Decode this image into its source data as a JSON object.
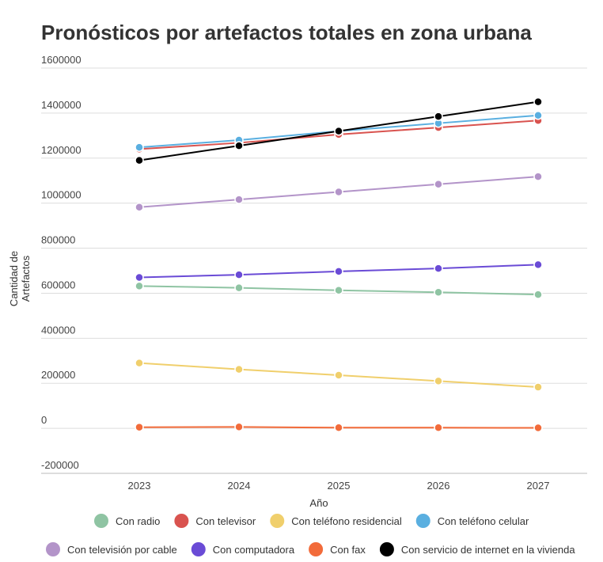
{
  "chart_data": {
    "type": "line",
    "title": "Pronósticos por artefactos totales en zona urbana",
    "xlabel": "Año",
    "ylabel": "Cantidad de Artefactos",
    "ylabel_lines": [
      "Cantidad de",
      "Artefactos"
    ],
    "x": [
      "2023",
      "2024",
      "2025",
      "2026",
      "2027"
    ],
    "ylim": [
      -200000,
      1600000
    ],
    "yticks": [
      -200000,
      0,
      200000,
      400000,
      600000,
      800000,
      1000000,
      1200000,
      1400000,
      1600000
    ],
    "ytick_labels": [
      "-200000",
      "0",
      "200000",
      "400000",
      "600000",
      "800000",
      "1000000",
      "1200000",
      "1400000",
      "1600000"
    ],
    "grid": true,
    "legend_position": "bottom",
    "series": [
      {
        "name": "Con radio",
        "color": "#8fc4a3",
        "values": [
          632000,
          624000,
          613000,
          604000,
          594000
        ]
      },
      {
        "name": "Con televisor",
        "color": "#d9534f",
        "values": [
          1240000,
          1268000,
          1305000,
          1336000,
          1367000
        ]
      },
      {
        "name": "Con teléfono residencial",
        "color": "#f0cf6c",
        "values": [
          290000,
          262000,
          236000,
          210000,
          183000
        ]
      },
      {
        "name": "Con teléfono celular",
        "color": "#5aafe0",
        "values": [
          1248000,
          1280000,
          1320000,
          1355000,
          1390000
        ]
      },
      {
        "name": "Con televisión por cable",
        "color": "#b394c9",
        "values": [
          982000,
          1016000,
          1050000,
          1084000,
          1118000
        ]
      },
      {
        "name": "Con computadora",
        "color": "#6a4bd6",
        "values": [
          670000,
          682000,
          697000,
          710000,
          727000
        ]
      },
      {
        "name": "Con fax",
        "color": "#f26b3a",
        "values": [
          5000,
          6000,
          3000,
          3000,
          2000
        ]
      },
      {
        "name": "Con servicio de internet en la vivienda",
        "color": "#000000",
        "values": [
          1190000,
          1255000,
          1320000,
          1385000,
          1450000
        ]
      }
    ]
  }
}
